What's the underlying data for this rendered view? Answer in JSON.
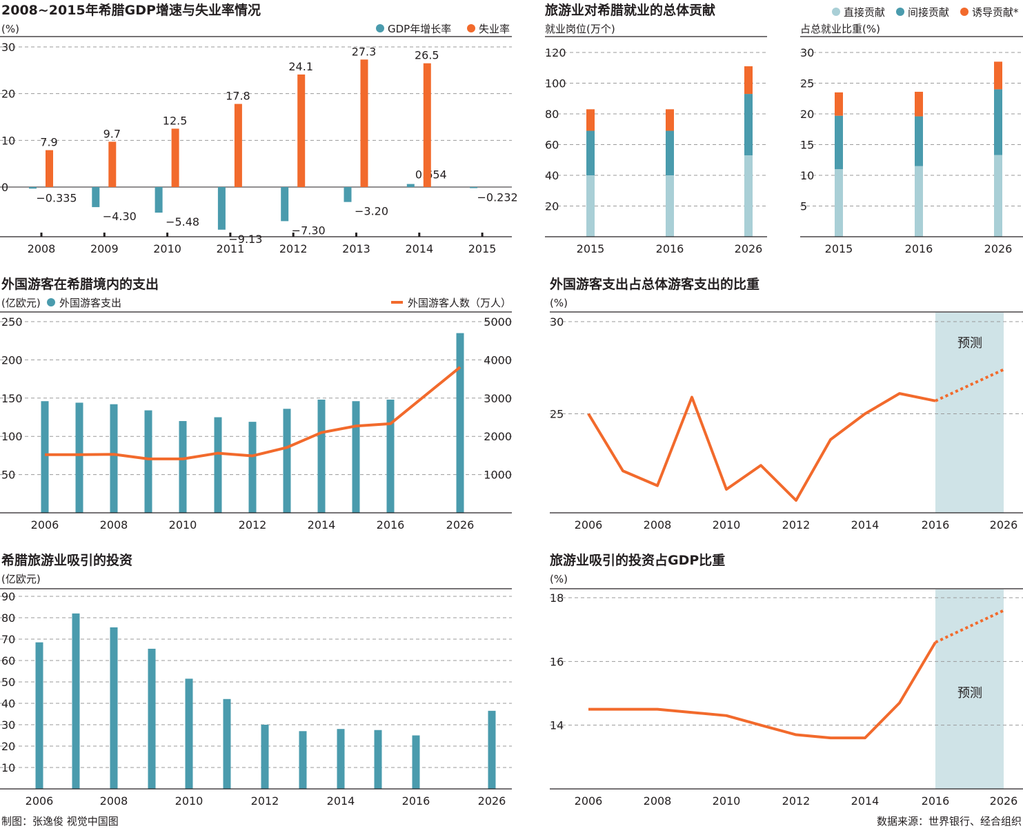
{
  "colors": {
    "teal": "#4a9bad",
    "orange": "#f26a2c",
    "light_teal": "#a9cfd6",
    "forecast_bg": "#cfe3e7"
  },
  "chart_data": [
    {
      "id": "gdp_unemployment",
      "type": "bar",
      "title": "2008~2015年希腊GDP增速与失业率情况",
      "unit": "(%)",
      "categories": [
        "2008",
        "2009",
        "2010",
        "2011",
        "2012",
        "2013",
        "2014",
        "2015"
      ],
      "series": [
        {
          "name": "GDP年增长率",
          "color": "#4a9bad",
          "values": [
            -0.335,
            -4.3,
            -5.48,
            -9.13,
            -7.3,
            -3.2,
            0.654,
            -0.232
          ],
          "labels": [
            "−0.335",
            "−4.30",
            "−5.48",
            "−9.13",
            "−7.30",
            "−3.20",
            "0.654",
            "−0.232"
          ]
        },
        {
          "name": "失业率",
          "color": "#f26a2c",
          "values": [
            7.9,
            9.7,
            12.5,
            17.8,
            24.1,
            27.3,
            26.5,
            null
          ],
          "labels": [
            "7.9",
            "9.7",
            "12.5",
            "17.8",
            "24.1",
            "27.3",
            "26.5",
            ""
          ]
        }
      ],
      "yticks": [
        "30",
        "20",
        "10",
        "0"
      ],
      "ylim": [
        -10,
        30
      ]
    },
    {
      "id": "jobs_total",
      "type": "bar",
      "stacked": true,
      "title": "旅游业对希腊就业的总体贡献",
      "legend": [
        "直接贡献",
        "间接贡献",
        "诱导贡献*"
      ],
      "unit": "就业岗位(万个)",
      "categories": [
        "2015",
        "2016",
        "2026"
      ],
      "series": [
        {
          "name": "直接贡献",
          "color": "#a9cfd6",
          "values": [
            40,
            40,
            53
          ]
        },
        {
          "name": "间接贡献",
          "color": "#4a9bad",
          "values": [
            29,
            29,
            40
          ]
        },
        {
          "name": "诱导贡献*",
          "color": "#f26a2c",
          "values": [
            14,
            14,
            18
          ]
        }
      ],
      "yticks": [
        "120",
        "100",
        "80",
        "60",
        "40",
        "20"
      ],
      "ylim": [
        0,
        120
      ]
    },
    {
      "id": "jobs_share",
      "type": "bar",
      "stacked": true,
      "unit": "占总就业比重(%)",
      "categories": [
        "2015",
        "2016",
        "2026"
      ],
      "series": [
        {
          "name": "直接贡献",
          "color": "#a9cfd6",
          "values": [
            11,
            11.5,
            13.3
          ]
        },
        {
          "name": "间接贡献",
          "color": "#4a9bad",
          "values": [
            8.7,
            8.1,
            10.7
          ]
        },
        {
          "name": "诱导贡献*",
          "color": "#f26a2c",
          "values": [
            3.8,
            4.0,
            4.5
          ]
        }
      ],
      "yticks": [
        "30",
        "25",
        "20",
        "15",
        "10",
        "5"
      ],
      "ylim": [
        0,
        30
      ]
    },
    {
      "id": "foreign_spending",
      "type": "bar",
      "title": "外国游客在希腊境内的支出",
      "unit_left": "(亿欧元)",
      "categories": [
        "2006",
        "2007",
        "2008",
        "2009",
        "2010",
        "2011",
        "2012",
        "2013",
        "2014",
        "2015",
        "2016",
        "2026"
      ],
      "xtick_labels": [
        "2006",
        "2008",
        "2010",
        "2012",
        "2014",
        "2016",
        "2026"
      ],
      "series": [
        {
          "name": "外国游客支出",
          "color": "#4a9bad",
          "axis": "left",
          "values": [
            146,
            144,
            142,
            134,
            120,
            125,
            119,
            136,
            148,
            146,
            148,
            235
          ]
        },
        {
          "name": "外国游客人数（万人）",
          "color": "#f26a2c",
          "type": "line",
          "axis": "right",
          "values": [
            1520,
            1520,
            1530,
            1410,
            1410,
            1560,
            1490,
            1710,
            2100,
            2270,
            2330,
            3810
          ]
        }
      ],
      "yticks_left": [
        "250",
        "200",
        "150",
        "100",
        "50"
      ],
      "yticks_right": [
        "5000",
        "4000",
        "3000",
        "2000",
        "1000"
      ],
      "ylim_left": [
        0,
        250
      ],
      "ylim_right": [
        0,
        5000
      ]
    },
    {
      "id": "spending_share",
      "type": "line",
      "title": "外国游客支出占总体游客支出的比重",
      "unit": "(%)",
      "categories": [
        "2006",
        "2007",
        "2008",
        "2009",
        "2010",
        "2011",
        "2012",
        "2013",
        "2014",
        "2015",
        "2016",
        "2026"
      ],
      "xtick_labels": [
        "2006",
        "2008",
        "2010",
        "2012",
        "2014",
        "2016",
        "2026"
      ],
      "values": [
        25.0,
        21.9,
        21.1,
        25.9,
        20.9,
        22.2,
        20.3,
        23.6,
        25.0,
        26.1,
        25.7,
        27.4
      ],
      "forecast_from_index": 10,
      "forecast_label": "预测",
      "yticks": [
        "30",
        "25"
      ],
      "ylim": [
        20,
        30
      ]
    },
    {
      "id": "investment",
      "type": "bar",
      "title": "希腊旅游业吸引的投资",
      "unit": "(亿欧元)",
      "categories": [
        "2006",
        "2007",
        "2008",
        "2009",
        "2010",
        "2011",
        "2012",
        "2013",
        "2014",
        "2015",
        "2016",
        "2026"
      ],
      "xtick_labels": [
        "2006",
        "2008",
        "2010",
        "2012",
        "2014",
        "2016",
        "2026"
      ],
      "values": [
        68.5,
        82,
        75.5,
        65.5,
        51.5,
        42,
        30,
        27,
        28,
        27.5,
        25,
        36.5
      ],
      "yticks": [
        "90",
        "80",
        "70",
        "60",
        "50",
        "40",
        "30",
        "20",
        "10"
      ],
      "ylim": [
        0,
        90
      ]
    },
    {
      "id": "investment_gdp",
      "type": "line",
      "title": "旅游业吸引的投资占GDP比重",
      "unit": "(%)",
      "categories": [
        "2006",
        "2007",
        "2008",
        "2009",
        "2010",
        "2011",
        "2012",
        "2013",
        "2014",
        "2015",
        "2016",
        "2026"
      ],
      "xtick_labels": [
        "2006",
        "2008",
        "2010",
        "2012",
        "2014",
        "2016",
        "2026"
      ],
      "values": [
        14.5,
        14.5,
        14.5,
        14.4,
        14.3,
        14.0,
        13.7,
        13.6,
        13.6,
        14.7,
        16.6,
        17.6
      ],
      "forecast_from_index": 10,
      "forecast_label": "预测",
      "yticks": [
        "18",
        "16",
        "14"
      ],
      "ylim": [
        12,
        18
      ]
    }
  ],
  "footer": {
    "credit": "制图：张逸俊  视觉中国图",
    "source": "数据来源：世界银行、经合组织"
  }
}
